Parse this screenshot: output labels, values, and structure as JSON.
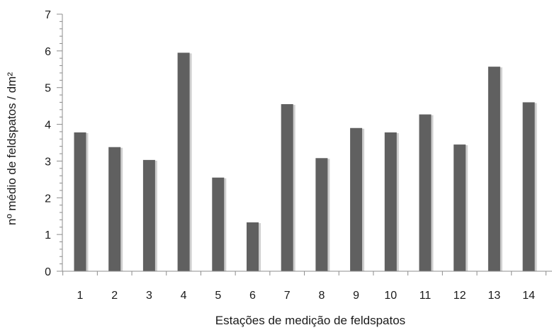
{
  "chart_data": {
    "type": "bar",
    "categories": [
      "1",
      "2",
      "3",
      "4",
      "5",
      "6",
      "7",
      "8",
      "9",
      "10",
      "11",
      "12",
      "13",
      "14"
    ],
    "values": [
      3.78,
      3.38,
      3.03,
      5.95,
      2.55,
      1.33,
      4.55,
      3.08,
      3.9,
      3.78,
      4.27,
      3.45,
      5.57,
      4.6
    ],
    "title": "",
    "xlabel": "Estações de medição de feldspatos",
    "ylabel": "nº médio de feldspatos / dm²",
    "ylim": [
      0,
      7
    ],
    "yticks": [
      0,
      1,
      2,
      3,
      4,
      5,
      6,
      7
    ],
    "minor_ticks_per_major": 5,
    "grid": false,
    "legend": false,
    "colors": {
      "bar": "#606060",
      "bar_shadow": "#cfcfcf",
      "axis": "#8c8c8c",
      "text": "#1a1a1a"
    }
  }
}
